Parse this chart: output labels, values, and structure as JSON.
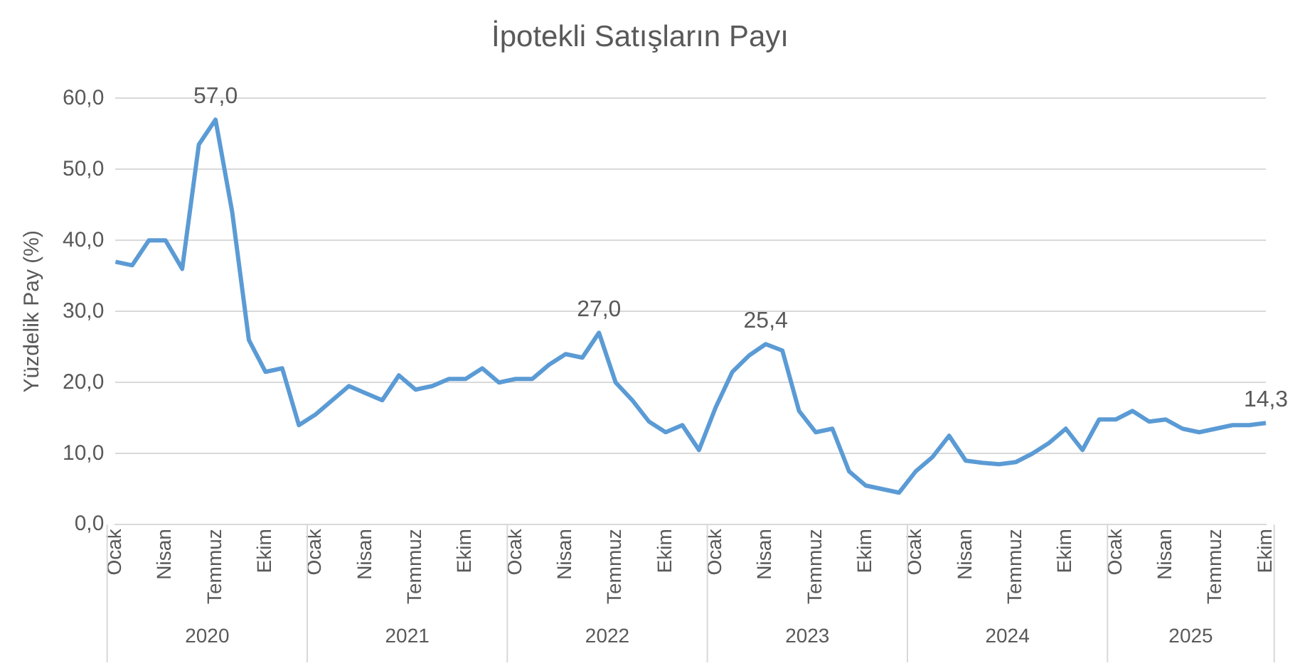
{
  "chart_data": {
    "type": "line",
    "title": "İpotekli Satışların Payı",
    "ylabel": "Yüzdelik Pay (%)",
    "categories": [
      "Ocak",
      null,
      null,
      "Nisan",
      null,
      null,
      "Temmuz",
      null,
      null,
      "Ekim",
      null,
      null,
      "Ocak",
      null,
      null,
      "Nisan",
      null,
      null,
      "Temmuz",
      null,
      null,
      "Ekim",
      null,
      null,
      "Ocak",
      null,
      null,
      "Nisan",
      null,
      null,
      "Temmuz",
      null,
      null,
      "Ekim",
      null,
      null,
      "Ocak",
      null,
      null,
      "Nisan",
      null,
      null,
      "Temmuz",
      null,
      null,
      "Ekim",
      null,
      null,
      "Ocak",
      null,
      null,
      "Nisan",
      null,
      null,
      "Temmuz",
      null,
      null,
      "Ekim",
      null,
      null,
      "Ocak",
      null,
      null,
      "Nisan",
      null,
      null,
      "Temmuz",
      null,
      null,
      "Ekim"
    ],
    "annotations": [
      "2020",
      "2021",
      "2022",
      "2023",
      "2024",
      "2025"
    ],
    "series": [
      {
        "color": "#5b9bd5",
        "values": [
          37,
          36.5,
          40,
          40,
          36,
          53.5,
          57,
          44,
          26,
          21.5,
          22,
          14,
          15.5,
          17.5,
          19.5,
          18.5,
          17.5,
          21,
          19,
          19.5,
          20.5,
          20.5,
          22,
          20,
          20.5,
          20.5,
          22.5,
          24,
          23.5,
          27,
          20,
          17.5,
          14.5,
          13,
          14,
          10.5,
          16.5,
          21.5,
          23.8,
          25.4,
          24.5,
          16,
          13,
          13.5,
          7.5,
          5.5,
          5,
          4.5,
          7.5,
          9.5,
          12.5,
          9,
          8.7,
          8.5,
          8.8,
          10,
          11.5,
          13.5,
          10.5,
          14.8,
          14.8,
          16,
          14.5,
          14.8,
          13.5,
          13,
          13.5,
          14,
          14,
          14.3
        ],
        "value_labels": [
          null,
          null,
          null,
          null,
          null,
          null,
          "57,0",
          null,
          null,
          null,
          null,
          null,
          null,
          null,
          null,
          null,
          null,
          null,
          null,
          null,
          null,
          null,
          null,
          null,
          null,
          null,
          null,
          null,
          null,
          "27,0",
          null,
          null,
          null,
          null,
          null,
          null,
          null,
          null,
          null,
          "25,4",
          null,
          null,
          null,
          null,
          null,
          null,
          null,
          null,
          null,
          null,
          null,
          null,
          null,
          null,
          null,
          null,
          null,
          null,
          null,
          null,
          null,
          null,
          null,
          null,
          null,
          null,
          null,
          null,
          null,
          "14,3"
        ]
      }
    ],
    "ylim": [
      0,
      60
    ],
    "yticks": [
      {
        "value": 0,
        "label": "0,0"
      },
      {
        "value": 10,
        "label": "10,0"
      },
      {
        "value": 20,
        "label": "20,0"
      },
      {
        "value": 30,
        "label": "30,0"
      },
      {
        "value": 40,
        "label": "40,0"
      },
      {
        "value": 50,
        "label": "50,0"
      },
      {
        "value": 60,
        "label": "60,0"
      }
    ],
    "grid": "y",
    "legend": false,
    "marker": "none",
    "line_style": "solid"
  }
}
